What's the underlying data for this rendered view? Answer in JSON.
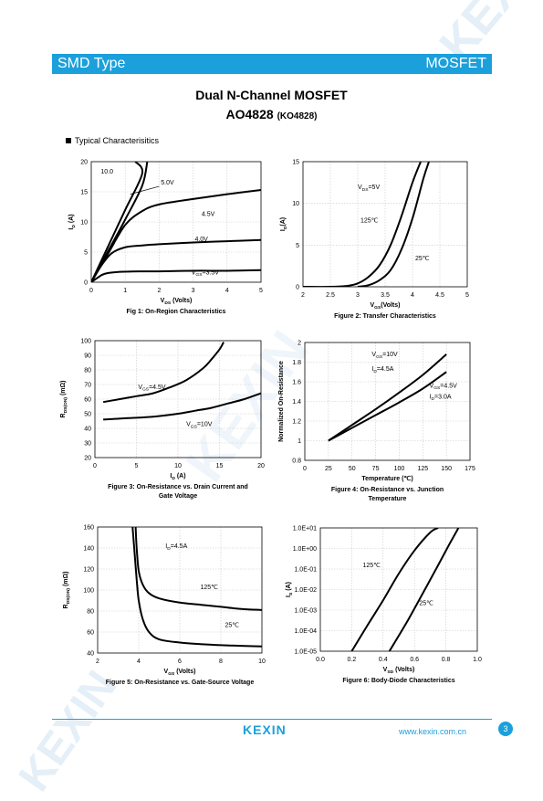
{
  "header": {
    "left": "SMD Type",
    "right": "MOSFET"
  },
  "title": "Dual N-Channel MOSFET",
  "part": {
    "number": "AO4828",
    "alt": "(KO4828)"
  },
  "section": "Typical  Characterisitics",
  "watermark": "KEXIN",
  "footer": {
    "logo": "KEXIN",
    "url": "www.kexin.com.cn",
    "page": "3"
  },
  "colors": {
    "brand": "#1ba0dc",
    "watermark": "#e2eef8"
  },
  "chart_data": [
    {
      "id": "fig1",
      "type": "line",
      "caption": [
        "Fig 1: On-Region Characteristics"
      ],
      "xlabel": {
        "main": "V",
        "sub": "DS",
        "tail": " (Volts)"
      },
      "ylabel": {
        "main": "I",
        "sub": "D",
        "tail": " (A)"
      },
      "xlim": [
        0,
        5
      ],
      "ylim": [
        0,
        20
      ],
      "xticks": [
        "0",
        "1",
        "2",
        "3",
        "4",
        "5"
      ],
      "yticks": [
        "0",
        "5",
        "10",
        "15",
        "20"
      ],
      "grid": true,
      "series": [
        {
          "name": "10.0",
          "x": [
            0,
            0.5,
            1,
            1.5,
            1.3
          ],
          "y": [
            0,
            6,
            12,
            18,
            20
          ]
        },
        {
          "name": "5.0V",
          "x": [
            0,
            0.5,
            1,
            1.5,
            1.65
          ],
          "y": [
            0,
            5.2,
            10.4,
            16,
            20
          ]
        },
        {
          "name": "4.5V",
          "x": [
            0,
            0.5,
            1,
            1.5,
            2,
            3,
            4,
            5
          ],
          "y": [
            0,
            4.8,
            9.5,
            11.8,
            12.9,
            13.8,
            14.6,
            15.3
          ]
        },
        {
          "name": "4.0V",
          "x": [
            0,
            0.3,
            0.6,
            1,
            1.5,
            2,
            3,
            4,
            5
          ],
          "y": [
            0,
            2.8,
            4.8,
            5.8,
            6.1,
            6.3,
            6.6,
            6.8,
            7.0
          ]
        },
        {
          "name": "3.5V",
          "x": [
            0,
            0.2,
            0.4,
            0.8,
            1.5,
            2,
            3,
            4,
            5
          ],
          "y": [
            0,
            0.8,
            1.4,
            1.7,
            1.8,
            1.8,
            1.9,
            1.9,
            2.0
          ]
        }
      ],
      "labels": [
        {
          "text": "10.0",
          "x": 0.28,
          "y": 18.0
        },
        {
          "text": "5.0V",
          "x": 2.05,
          "y": 16.2
        },
        {
          "text": "4.5V",
          "x": 3.25,
          "y": 11.0
        },
        {
          "text": "4.0V",
          "x": 3.05,
          "y": 6.8
        },
        {
          "text": "V",
          "sub": "GS",
          "tail": "=3.5V",
          "x": 2.95,
          "y": 1.3
        }
      ]
    },
    {
      "id": "fig2",
      "type": "line",
      "caption": [
        "Figure 2: Transfer Characteristics"
      ],
      "xlabel": {
        "main": "V",
        "sub": "GS",
        "tail": "(Volts)"
      },
      "ylabel": {
        "main": "I",
        "sub": "D",
        "tail": "(A)"
      },
      "xlim": [
        2,
        5
      ],
      "ylim": [
        0,
        15
      ],
      "xticks": [
        "2",
        "2.5",
        "3",
        "3.5",
        "4",
        "4.5",
        "5"
      ],
      "yticks": [
        "0",
        "5",
        "10",
        "15"
      ],
      "grid": true,
      "series": [
        {
          "name": "125℃",
          "x": [
            2.0,
            2.5,
            2.8,
            3.0,
            3.2,
            3.4,
            3.6,
            3.8,
            4.0,
            4.15
          ],
          "y": [
            0,
            0,
            0.1,
            0.4,
            1.2,
            2.6,
            5.0,
            8.5,
            12.5,
            15
          ]
        },
        {
          "name": "25℃",
          "x": [
            3.0,
            3.2,
            3.4,
            3.6,
            3.8,
            4.0,
            4.2,
            4.3
          ],
          "y": [
            0,
            0.2,
            0.8,
            2.0,
            4.5,
            8.2,
            13.0,
            15
          ]
        }
      ],
      "labels": [
        {
          "text": "V",
          "sub": "DS",
          "tail": "=5V",
          "x": 3.0,
          "y": 11.7
        },
        {
          "text": "125℃",
          "x": 3.05,
          "y": 7.7
        },
        {
          "text": "25℃",
          "x": 4.05,
          "y": 3.2
        }
      ]
    },
    {
      "id": "fig3",
      "type": "line",
      "caption": [
        "Figure 3: On-Resistance vs. Drain Current and",
        "Gate Voltage"
      ],
      "xlabel": {
        "main": "I",
        "sub": "D",
        "tail": " (A)"
      },
      "ylabel": {
        "main": "R",
        "sub": "DS(ON)",
        "tail": " (mΩ)"
      },
      "xlim": [
        0,
        20
      ],
      "ylim": [
        20,
        100
      ],
      "xticks": [
        "0",
        "5",
        "10",
        "15",
        "20"
      ],
      "yticks": [
        "20",
        "30",
        "40",
        "50",
        "60",
        "70",
        "80",
        "90",
        "100"
      ],
      "grid": true,
      "series": [
        {
          "name": "4.5V",
          "x": [
            1,
            3,
            5,
            7,
            9,
            11,
            13,
            14,
            15,
            15.5
          ],
          "y": [
            58,
            60,
            62,
            64,
            68,
            73,
            81,
            87,
            94,
            99
          ]
        },
        {
          "name": "10V",
          "x": [
            1,
            4,
            7,
            10,
            12,
            14,
            16,
            18,
            20
          ],
          "y": [
            46,
            47,
            48,
            50,
            52,
            54,
            57,
            60,
            64
          ]
        }
      ],
      "labels": [
        {
          "text": "V",
          "sub": "GS",
          "tail": "=4.5V",
          "x": 5.2,
          "y": 67.0
        },
        {
          "text": "V",
          "sub": "GS",
          "tail": "=10V",
          "x": 11.0,
          "y": 41.5
        }
      ]
    },
    {
      "id": "fig4",
      "type": "line",
      "caption": [
        "Figure 4: On-Resistance vs. Junction",
        "Temperature"
      ],
      "xlabel": {
        "main": "Temperature (℃)",
        "sub": "",
        "tail": ""
      },
      "ylabel": {
        "main": "Normalized On-Resistance",
        "sub": "",
        "tail": ""
      },
      "xlim": [
        0,
        175
      ],
      "ylim": [
        0.8,
        2
      ],
      "xticks": [
        "0",
        "25",
        "50",
        "75",
        "100",
        "125",
        "150",
        "175"
      ],
      "yticks": [
        "0.8",
        "1",
        "1.2",
        "1.4",
        "1.6",
        "1.8",
        "2"
      ],
      "grid": true,
      "series": [
        {
          "name": "10V",
          "x": [
            25,
            50,
            75,
            100,
            125,
            150
          ],
          "y": [
            1.0,
            1.16,
            1.32,
            1.49,
            1.67,
            1.88
          ]
        },
        {
          "name": "4.5V",
          "x": [
            25,
            50,
            75,
            100,
            125,
            150
          ],
          "y": [
            1.0,
            1.13,
            1.26,
            1.39,
            1.53,
            1.7
          ]
        }
      ],
      "labels": [
        {
          "text": "V",
          "sub": "GS",
          "tail": "=10V",
          "x": 71,
          "y": 1.86
        },
        {
          "text": "I",
          "sub": "D",
          "tail": "=4.5A",
          "x": 71,
          "y": 1.71
        },
        {
          "text": "V",
          "sub": "GS",
          "tail": "=4.5V",
          "x": 132,
          "y": 1.54
        },
        {
          "text": "I",
          "sub": "D",
          "tail": "=3.0A",
          "x": 132,
          "y": 1.43
        }
      ]
    },
    {
      "id": "fig5",
      "type": "line",
      "caption": [
        "Figure 5: On-Resistance vs. Gate-Source Voltage"
      ],
      "xlabel": {
        "main": "V",
        "sub": "GS",
        "tail": " (Volts)"
      },
      "ylabel": {
        "main": "R",
        "sub": "DS(ON)",
        "tail": " (mΩ)"
      },
      "xlim": [
        2,
        10
      ],
      "ylim": [
        40,
        160
      ],
      "xticks": [
        "2",
        "4",
        "6",
        "8",
        "10"
      ],
      "yticks": [
        "40",
        "60",
        "80",
        "100",
        "120",
        "140",
        "160"
      ],
      "grid": true,
      "series": [
        {
          "name": "125℃",
          "x": [
            3.85,
            3.9,
            4.0,
            4.2,
            4.5,
            5,
            6,
            7,
            8,
            9,
            10
          ],
          "y": [
            160,
            140,
            118,
            105,
            97,
            92,
            88,
            86,
            84,
            82,
            81
          ]
        },
        {
          "name": "25℃",
          "x": [
            3.7,
            3.8,
            3.9,
            4.0,
            4.2,
            4.5,
            5,
            6,
            7,
            8,
            9,
            10
          ],
          "y": [
            160,
            135,
            110,
            90,
            72,
            60,
            53,
            50,
            48.5,
            47.5,
            46.8,
            46.3
          ]
        }
      ],
      "labels": [
        {
          "text": "I",
          "sub": "D",
          "tail": "=4.5A",
          "x": 5.3,
          "y": 140
        },
        {
          "text": "125℃",
          "x": 7.0,
          "y": 101
        },
        {
          "text": "25℃",
          "x": 8.2,
          "y": 65
        }
      ]
    },
    {
      "id": "fig6",
      "type": "line",
      "log_y": true,
      "caption": [
        "Figure 6: Body-Diode Characteristics"
      ],
      "xlabel": {
        "main": "V",
        "sub": "SD",
        "tail": " (Volts)"
      },
      "ylabel": {
        "main": "I",
        "sub": "S",
        "tail": " (A)"
      },
      "xlim": [
        0,
        1
      ],
      "ylim": [
        1e-05,
        10
      ],
      "xticks": [
        "0.0",
        "0.2",
        "0.4",
        "0.6",
        "0.8",
        "1.0"
      ],
      "yticks": [
        "1.0E-05",
        "1.0E-04",
        "1.0E-03",
        "1.0E-02",
        "1.0E-01",
        "1.0E+00",
        "1.0E+01"
      ],
      "grid": true,
      "series": [
        {
          "name": "125℃",
          "x": [
            0.2,
            0.3,
            0.4,
            0.5,
            0.6,
            0.7,
            0.75
          ],
          "y": [
            1e-05,
            0.00018,
            0.003,
            0.06,
            0.8,
            6,
            10
          ]
        },
        {
          "name": "25℃",
          "x": [
            0.44,
            0.55,
            0.65,
            0.75,
            0.82,
            0.88
          ],
          "y": [
            1e-05,
            0.00025,
            0.006,
            0.15,
            1.5,
            10
          ]
        }
      ],
      "labels": [
        {
          "text": "125℃",
          "x": 0.27,
          "y": 0.12
        },
        {
          "text": "25℃",
          "x": 0.63,
          "y": 0.0018
        }
      ]
    }
  ]
}
